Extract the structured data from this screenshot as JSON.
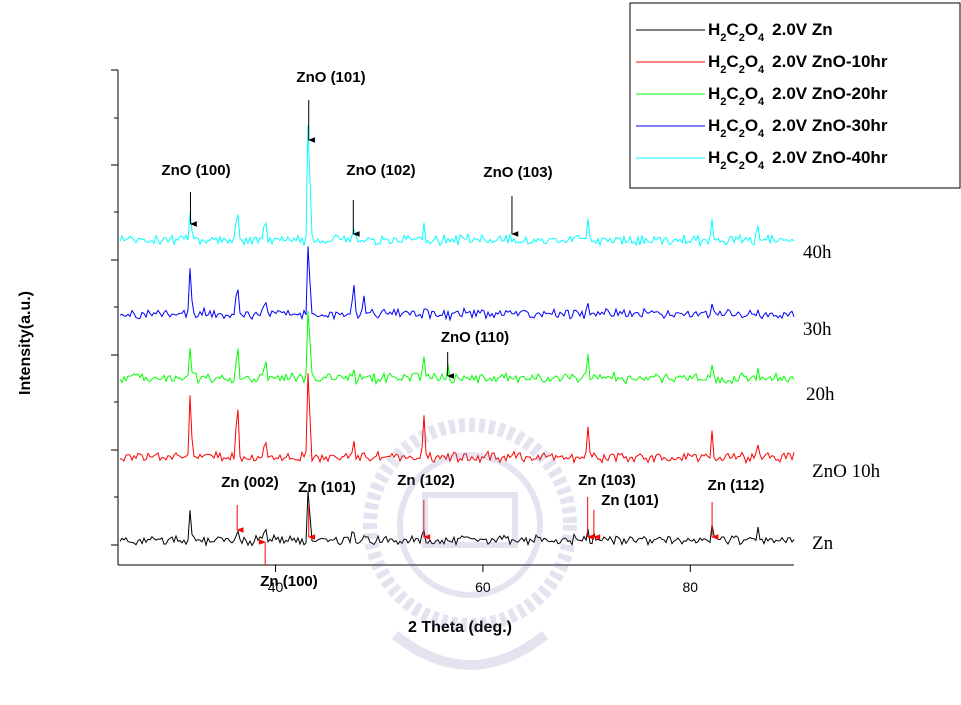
{
  "chart_data": {
    "type": "line",
    "xlabel": "2 Theta (deg.)",
    "ylabel": "Intensity(a.u.)",
    "xlim": [
      25,
      90
    ],
    "x_ticks": [
      40,
      60,
      80
    ],
    "y_axis": "offset traces, no tick labels",
    "grid": false,
    "legend_placement": "top-right",
    "legend": [
      {
        "chem": [
          "H",
          "2",
          "C",
          "2",
          "O",
          "4"
        ],
        "text": "2.0V  Zn",
        "color": "#000000"
      },
      {
        "chem": [
          "H",
          "2",
          "C",
          "2",
          "O",
          "4"
        ],
        "text": "2.0V  ZnO-10hr",
        "color": "#ff0000"
      },
      {
        "chem": [
          "H",
          "2",
          "C",
          "2",
          "O",
          "4"
        ],
        "text": "2.0V  ZnO-20hr",
        "color": "#00ff00"
      },
      {
        "chem": [
          "H",
          "2",
          "C",
          "2",
          "O",
          "4"
        ],
        "text": "2.0V  ZnO-30hr",
        "color": "#0000ff"
      },
      {
        "chem": [
          "H",
          "2",
          "C",
          "2",
          "O",
          "4"
        ],
        "text": "2.0V  ZnO-40hr",
        "color": "#00ffff"
      }
    ],
    "series": [
      {
        "name": "Zn",
        "color": "#000000",
        "peaks": [
          [
            31.8,
            58
          ],
          [
            36.3,
            18
          ],
          [
            39.0,
            28
          ],
          [
            43.2,
            100
          ],
          [
            47.5,
            20
          ],
          [
            54.3,
            12
          ],
          [
            70.1,
            15
          ],
          [
            70.7,
            12
          ],
          [
            82.1,
            18
          ],
          [
            86.5,
            12
          ]
        ]
      },
      {
        "name": "ZnO 10h",
        "color": "#ff0000",
        "peaks": [
          [
            31.8,
            60
          ],
          [
            36.3,
            62
          ],
          [
            39.0,
            22
          ],
          [
            43.2,
            100
          ],
          [
            47.5,
            15
          ],
          [
            54.3,
            35
          ],
          [
            70.1,
            30
          ],
          [
            82.1,
            22
          ],
          [
            86.5,
            12
          ]
        ]
      },
      {
        "name": "20h",
        "color": "#00ff00",
        "peaks": [
          [
            31.8,
            38
          ],
          [
            36.3,
            48
          ],
          [
            39.0,
            25
          ],
          [
            43.2,
            100
          ],
          [
            47.5,
            15
          ],
          [
            54.3,
            25
          ],
          [
            56.6,
            15
          ],
          [
            70.1,
            28
          ],
          [
            82.1,
            16
          ],
          [
            86.5,
            10
          ]
        ]
      },
      {
        "name": "30h",
        "color": "#0000ff",
        "peaks": [
          [
            31.8,
            52
          ],
          [
            36.3,
            35
          ],
          [
            39.0,
            18
          ],
          [
            43.2,
            100
          ],
          [
            47.5,
            35
          ],
          [
            48.5,
            15
          ],
          [
            70.1,
            12
          ],
          [
            82.1,
            10
          ]
        ]
      },
      {
        "name": "40h",
        "color": "#00ffff",
        "peaks": [
          [
            31.8,
            22
          ],
          [
            36.3,
            22
          ],
          [
            39.0,
            18
          ],
          [
            43.2,
            100
          ],
          [
            47.5,
            8
          ],
          [
            54.3,
            12
          ],
          [
            70.1,
            15
          ],
          [
            82.1,
            12
          ],
          [
            86.5,
            10
          ]
        ]
      }
    ],
    "annotations": {
      "zno": [
        {
          "text": "ZnO (100)",
          "x": 31.8
        },
        {
          "text": "ZnO (101)",
          "x": 43.2
        },
        {
          "text": "ZnO (102)",
          "x": 47.5
        },
        {
          "text": "ZnO (103)",
          "x": 62.8
        },
        {
          "text": "ZnO (110)",
          "x": 56.6
        }
      ],
      "zn": [
        {
          "text": "Zn (002)",
          "x": 36.3
        },
        {
          "text": "Zn (101)",
          "x": 43.2
        },
        {
          "text": "Zn (102)",
          "x": 54.3
        },
        {
          "text": "Zn (103)",
          "x": 70.1
        },
        {
          "text": "Zn (101)",
          "x": 70.7
        },
        {
          "text": "Zn (112)",
          "x": 82.1
        },
        {
          "text": "Zn (100)",
          "x": 39.0
        }
      ]
    }
  }
}
